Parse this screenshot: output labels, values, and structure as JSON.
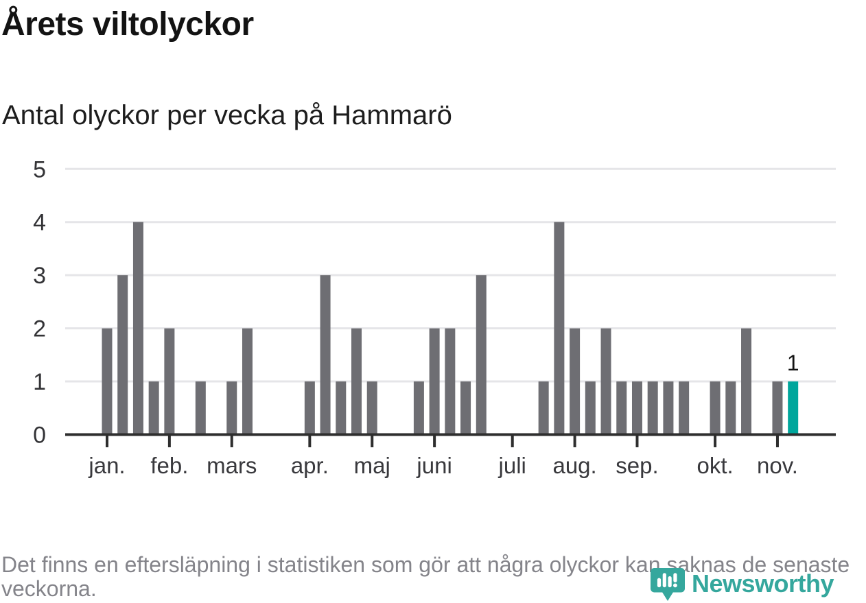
{
  "header": {
    "title": "Årets viltolyckor",
    "subtitle": "Antal olyckor per vecka på Hammarö"
  },
  "footer": {
    "note": "Det finns en eftersläpning i statistiken som gör att några olyckor kan saknas de senaste veckorna.",
    "logo_text": "Newsworthy"
  },
  "chart_data": {
    "type": "bar",
    "title": "Årets viltolyckor",
    "subtitle": "Antal olyckor per vecka på Hammarö",
    "x_description": "weeks of the year (one bar per week, weeks 1-45)",
    "values": [
      2,
      3,
      4,
      1,
      2,
      0,
      1,
      0,
      1,
      2,
      0,
      0,
      0,
      1,
      3,
      1,
      2,
      1,
      0,
      0,
      1,
      2,
      2,
      1,
      3,
      0,
      0,
      0,
      1,
      4,
      2,
      1,
      2,
      1,
      1,
      1,
      1,
      1,
      0,
      1,
      1,
      2,
      0,
      1,
      1
    ],
    "ylim": [
      0,
      5
    ],
    "yticks": [
      0,
      1,
      2,
      3,
      4,
      5
    ],
    "month_ticks": [
      {
        "label": "jan.",
        "week": 1
      },
      {
        "label": "feb.",
        "week": 5
      },
      {
        "label": "mars",
        "week": 9
      },
      {
        "label": "apr.",
        "week": 14
      },
      {
        "label": "maj",
        "week": 18
      },
      {
        "label": "juni",
        "week": 22
      },
      {
        "label": "juli",
        "week": 27
      },
      {
        "label": "aug.",
        "week": 31
      },
      {
        "label": "sep.",
        "week": 35
      },
      {
        "label": "okt.",
        "week": 40
      },
      {
        "label": "nov.",
        "week": 44
      }
    ],
    "highlight": {
      "week": 45,
      "value": 1,
      "label": "1"
    },
    "grid": true,
    "legend": "none",
    "style": {
      "bar_color": "#6e6e73",
      "highlight_color": "#00a69c",
      "grid_color": "#e5e5e8",
      "axis_color": "#2e2e2e",
      "logo_color": "#35a79d"
    }
  }
}
